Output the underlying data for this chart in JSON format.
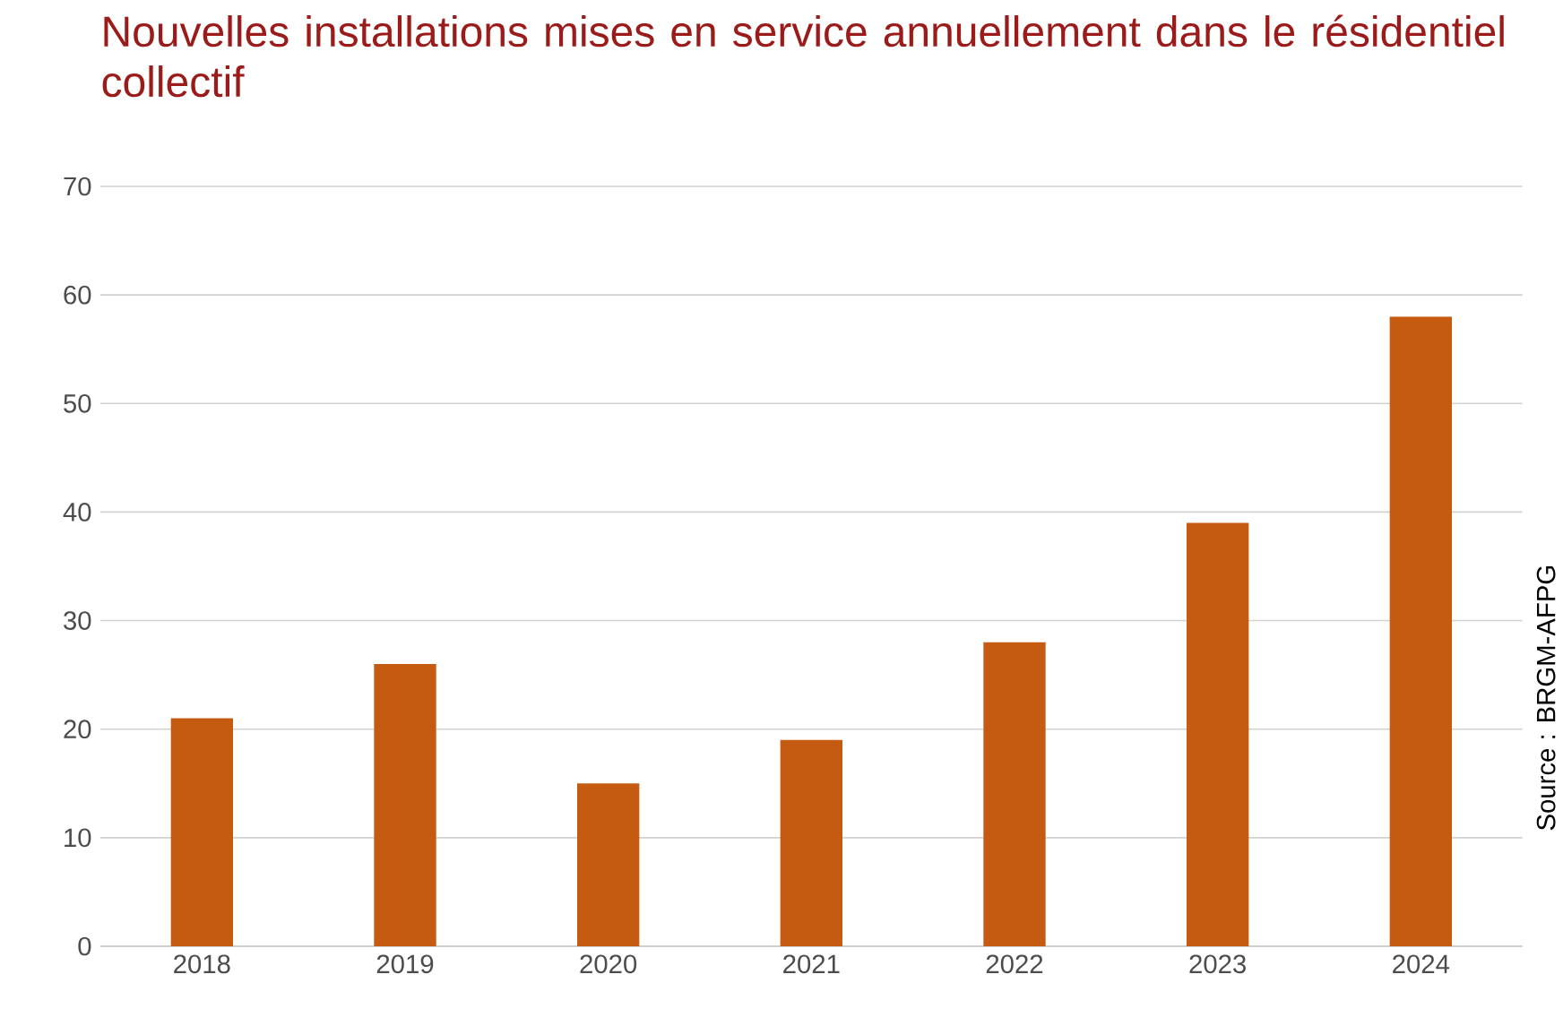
{
  "chart_data": {
    "type": "bar",
    "title": "Nouvelles installations mises en service annuellement dans le résidentiel collectif",
    "categories": [
      "2018",
      "2019",
      "2020",
      "2021",
      "2022",
      "2023",
      "2024"
    ],
    "values": [
      21,
      26,
      15,
      19,
      28,
      39,
      58
    ],
    "color": "#c55a11",
    "ylim": [
      0,
      70
    ],
    "yticks": [
      0,
      10,
      20,
      30,
      40,
      50,
      60,
      70
    ],
    "grid": "y",
    "annotations": [
      "Source : BRGM-AFPG"
    ]
  }
}
